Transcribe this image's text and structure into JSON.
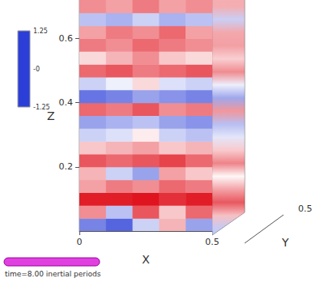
{
  "chart_data": {
    "type": "heatmap",
    "x_label": "X",
    "y_label": "Z",
    "depth_label": "Y",
    "xlim": [
      0,
      0.5
    ],
    "xticks": [
      0,
      0.5
    ],
    "ylim": [
      0,
      0.72
    ],
    "yticks": [
      0.2,
      0.4,
      0.6
    ],
    "depth_lim": [
      0,
      0.5
    ],
    "depth_ticks": [
      0.5
    ],
    "x_edges": [
      0,
      0.1,
      0.2,
      0.3,
      0.4,
      0.5
    ],
    "z_edges": [
      0,
      0.04,
      0.08,
      0.12,
      0.16,
      0.2,
      0.24,
      0.28,
      0.32,
      0.36,
      0.4,
      0.44,
      0.48,
      0.52,
      0.56,
      0.6,
      0.64,
      0.68,
      0.72
    ],
    "cells": [
      [
        -0.8,
        -1.0,
        -0.3,
        0.4,
        -0.6
      ],
      [
        0.6,
        -0.4,
        0.9,
        0.3,
        0.8
      ],
      [
        1.2,
        1.2,
        1.25,
        1.1,
        1.2
      ],
      [
        0.5,
        0.7,
        0.6,
        0.8,
        0.7
      ],
      [
        0.4,
        -0.3,
        -0.6,
        0.5,
        0.3
      ],
      [
        0.9,
        0.8,
        0.9,
        1.0,
        0.8
      ],
      [
        0.3,
        0.4,
        0.5,
        0.3,
        0.4
      ],
      [
        -0.3,
        -0.2,
        0.1,
        -0.3,
        -0.4
      ],
      [
        -0.6,
        -0.5,
        -0.4,
        -0.6,
        -0.7
      ],
      [
        0.8,
        0.7,
        0.9,
        0.6,
        0.7
      ],
      [
        -0.9,
        -0.8,
        -0.6,
        -0.7,
        -0.8
      ],
      [
        -0.3,
        -0.1,
        0.2,
        -0.2,
        -0.3
      ],
      [
        0.8,
        0.9,
        0.7,
        0.8,
        0.9
      ],
      [
        0.2,
        0.4,
        0.6,
        0.3,
        0.2
      ],
      [
        0.7,
        0.6,
        0.8,
        0.7,
        0.6
      ],
      [
        0.5,
        0.7,
        0.6,
        0.8,
        0.5
      ],
      [
        -0.4,
        -0.5,
        -0.3,
        -0.5,
        -0.4
      ],
      [
        0.6,
        0.5,
        0.7,
        0.5,
        0.6
      ]
    ],
    "colorbar": {
      "range": [
        -1.25,
        1.25
      ],
      "ticks": [
        {
          "value": 1.25,
          "label": "1.25"
        },
        {
          "value": 0,
          "label": "-0"
        },
        {
          "value": -1.25,
          "label": "-1.25"
        }
      ],
      "colors": [
        "#2b3fd8",
        "#ffffff",
        "#e0141e"
      ]
    }
  },
  "time_label": "time=8.00 inertial periods"
}
